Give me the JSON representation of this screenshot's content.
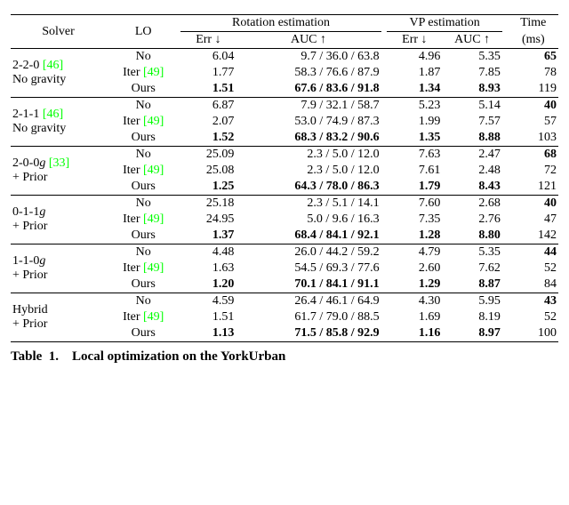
{
  "table": {
    "header": {
      "solver": "Solver",
      "lo": "LO",
      "rotation": "Rotation estimation",
      "vp": "VP estimation",
      "time": "Time",
      "time_unit": "(ms)",
      "err": "Err ↓",
      "auc": "AUC ↑"
    },
    "groups": [
      {
        "solver_l1": "2-2-0 ",
        "cite1": "[46]",
        "solver_l2": "No gravity",
        "rows": [
          {
            "lo": "No",
            "rot_err": "6.04",
            "rot_auc": "9.7 / 36.0 / 63.8",
            "vp_err": "4.96",
            "vp_auc": "5.35",
            "time": "65",
            "bold_rot": false,
            "bold_vp": false,
            "bold_time": true
          },
          {
            "lo": "Iter ",
            "lo_cite": "[49]",
            "rot_err": "1.77",
            "rot_auc": "58.3 / 76.6 / 87.9",
            "vp_err": "1.87",
            "vp_auc": "7.85",
            "time": "78",
            "bold_rot": false,
            "bold_vp": false,
            "bold_time": false
          },
          {
            "lo": "Ours",
            "rot_err": "1.51",
            "rot_auc": "67.6 / 83.6 / 91.8",
            "vp_err": "1.34",
            "vp_auc": "8.93",
            "time": "119",
            "bold_rot": true,
            "bold_vp": true,
            "bold_time": false
          }
        ]
      },
      {
        "solver_l1": "2-1-1 ",
        "cite1": "[46]",
        "solver_l2": "No gravity",
        "rows": [
          {
            "lo": "No",
            "rot_err": "6.87",
            "rot_auc": "7.9 / 32.1 / 58.7",
            "vp_err": "5.23",
            "vp_auc": "5.14",
            "time": "40",
            "bold_rot": false,
            "bold_vp": false,
            "bold_time": true
          },
          {
            "lo": "Iter ",
            "lo_cite": "[49]",
            "rot_err": "2.07",
            "rot_auc": "53.0 / 74.9 / 87.3",
            "vp_err": "1.99",
            "vp_auc": "7.57",
            "time": "57",
            "bold_rot": false,
            "bold_vp": false,
            "bold_time": false
          },
          {
            "lo": "Ours",
            "rot_err": "1.52",
            "rot_auc": "68.3 / 83.2 / 90.6",
            "vp_err": "1.35",
            "vp_auc": "8.88",
            "time": "103",
            "bold_rot": true,
            "bold_vp": true,
            "bold_time": false
          }
        ]
      },
      {
        "solver_l1": "2-0-0",
        "solver_l1_suffix": "g ",
        "cite1": "[33]",
        "solver_l2": "+ Prior",
        "rows": [
          {
            "lo": "No",
            "rot_err": "25.09",
            "rot_auc": "2.3 /   5.0 / 12.0",
            "vp_err": "7.63",
            "vp_auc": "2.47",
            "time": "68",
            "bold_rot": false,
            "bold_vp": false,
            "bold_time": true
          },
          {
            "lo": "Iter ",
            "lo_cite": "[49]",
            "rot_err": "25.08",
            "rot_auc": "2.3 /   5.0 / 12.0",
            "vp_err": "7.61",
            "vp_auc": "2.48",
            "time": "72",
            "bold_rot": false,
            "bold_vp": false,
            "bold_time": false
          },
          {
            "lo": "Ours",
            "rot_err": "1.25",
            "rot_auc": "64.3 / 78.0 / 86.3",
            "vp_err": "1.79",
            "vp_auc": "8.43",
            "time": "121",
            "bold_rot": true,
            "bold_vp": true,
            "bold_time": false
          }
        ]
      },
      {
        "solver_l1": "0-1-1",
        "solver_l1_suffix": "g",
        "cite1": "",
        "solver_l2": "+ Prior",
        "rows": [
          {
            "lo": "No",
            "rot_err": "25.18",
            "rot_auc": "2.3 /   5.1 / 14.1",
            "vp_err": "7.60",
            "vp_auc": "2.68",
            "time": "40",
            "bold_rot": false,
            "bold_vp": false,
            "bold_time": true
          },
          {
            "lo": "Iter ",
            "lo_cite": "[49]",
            "rot_err": "24.95",
            "rot_auc": "5.0 /   9.6 / 16.3",
            "vp_err": "7.35",
            "vp_auc": "2.76",
            "time": "47",
            "bold_rot": false,
            "bold_vp": false,
            "bold_time": false
          },
          {
            "lo": "Ours",
            "rot_err": "1.37",
            "rot_auc": "68.4 / 84.1 / 92.1",
            "vp_err": "1.28",
            "vp_auc": "8.80",
            "time": "142",
            "bold_rot": true,
            "bold_vp": true,
            "bold_time": false
          }
        ]
      },
      {
        "solver_l1": "1-1-0",
        "solver_l1_suffix": "g",
        "cite1": "",
        "solver_l2": "+ Prior",
        "rows": [
          {
            "lo": "No",
            "rot_err": "4.48",
            "rot_auc": "26.0 / 44.2 / 59.2",
            "vp_err": "4.79",
            "vp_auc": "5.35",
            "time": "44",
            "bold_rot": false,
            "bold_vp": false,
            "bold_time": true
          },
          {
            "lo": "Iter ",
            "lo_cite": "[49]",
            "rot_err": "1.63",
            "rot_auc": "54.5 / 69.3 / 77.6",
            "vp_err": "2.60",
            "vp_auc": "7.62",
            "time": "52",
            "bold_rot": false,
            "bold_vp": false,
            "bold_time": false
          },
          {
            "lo": "Ours",
            "rot_err": "1.20",
            "rot_auc": "70.1 / 84.1 / 91.1",
            "vp_err": "1.29",
            "vp_auc": "8.87",
            "time": "84",
            "bold_rot": true,
            "bold_vp": true,
            "bold_time": false
          }
        ]
      },
      {
        "solver_l1": "Hybrid",
        "solver_l1_suffix": "",
        "cite1": "",
        "solver_l2": "+ Prior",
        "rows": [
          {
            "lo": "No",
            "rot_err": "4.59",
            "rot_auc": "26.4 / 46.1 / 64.9",
            "vp_err": "4.30",
            "vp_auc": "5.95",
            "time": "43",
            "bold_rot": false,
            "bold_vp": false,
            "bold_time": true
          },
          {
            "lo": "Iter ",
            "lo_cite": "[49]",
            "rot_err": "1.51",
            "rot_auc": "61.7 / 79.0 / 88.5",
            "vp_err": "1.69",
            "vp_auc": "8.19",
            "time": "52",
            "bold_rot": false,
            "bold_vp": false,
            "bold_time": false
          },
          {
            "lo": "Ours",
            "rot_err": "1.13",
            "rot_auc": "71.5 / 85.8 / 92.9",
            "vp_err": "1.16",
            "vp_auc": "8.97",
            "time": "100",
            "bold_rot": true,
            "bold_vp": true,
            "bold_time": false
          }
        ]
      }
    ],
    "styling": {
      "cite_color": "#00ff00",
      "font_family": "Times New Roman",
      "font_size_pt": 11
    }
  },
  "caption_partial": "Local  optimization  on  the  YorkUrban"
}
